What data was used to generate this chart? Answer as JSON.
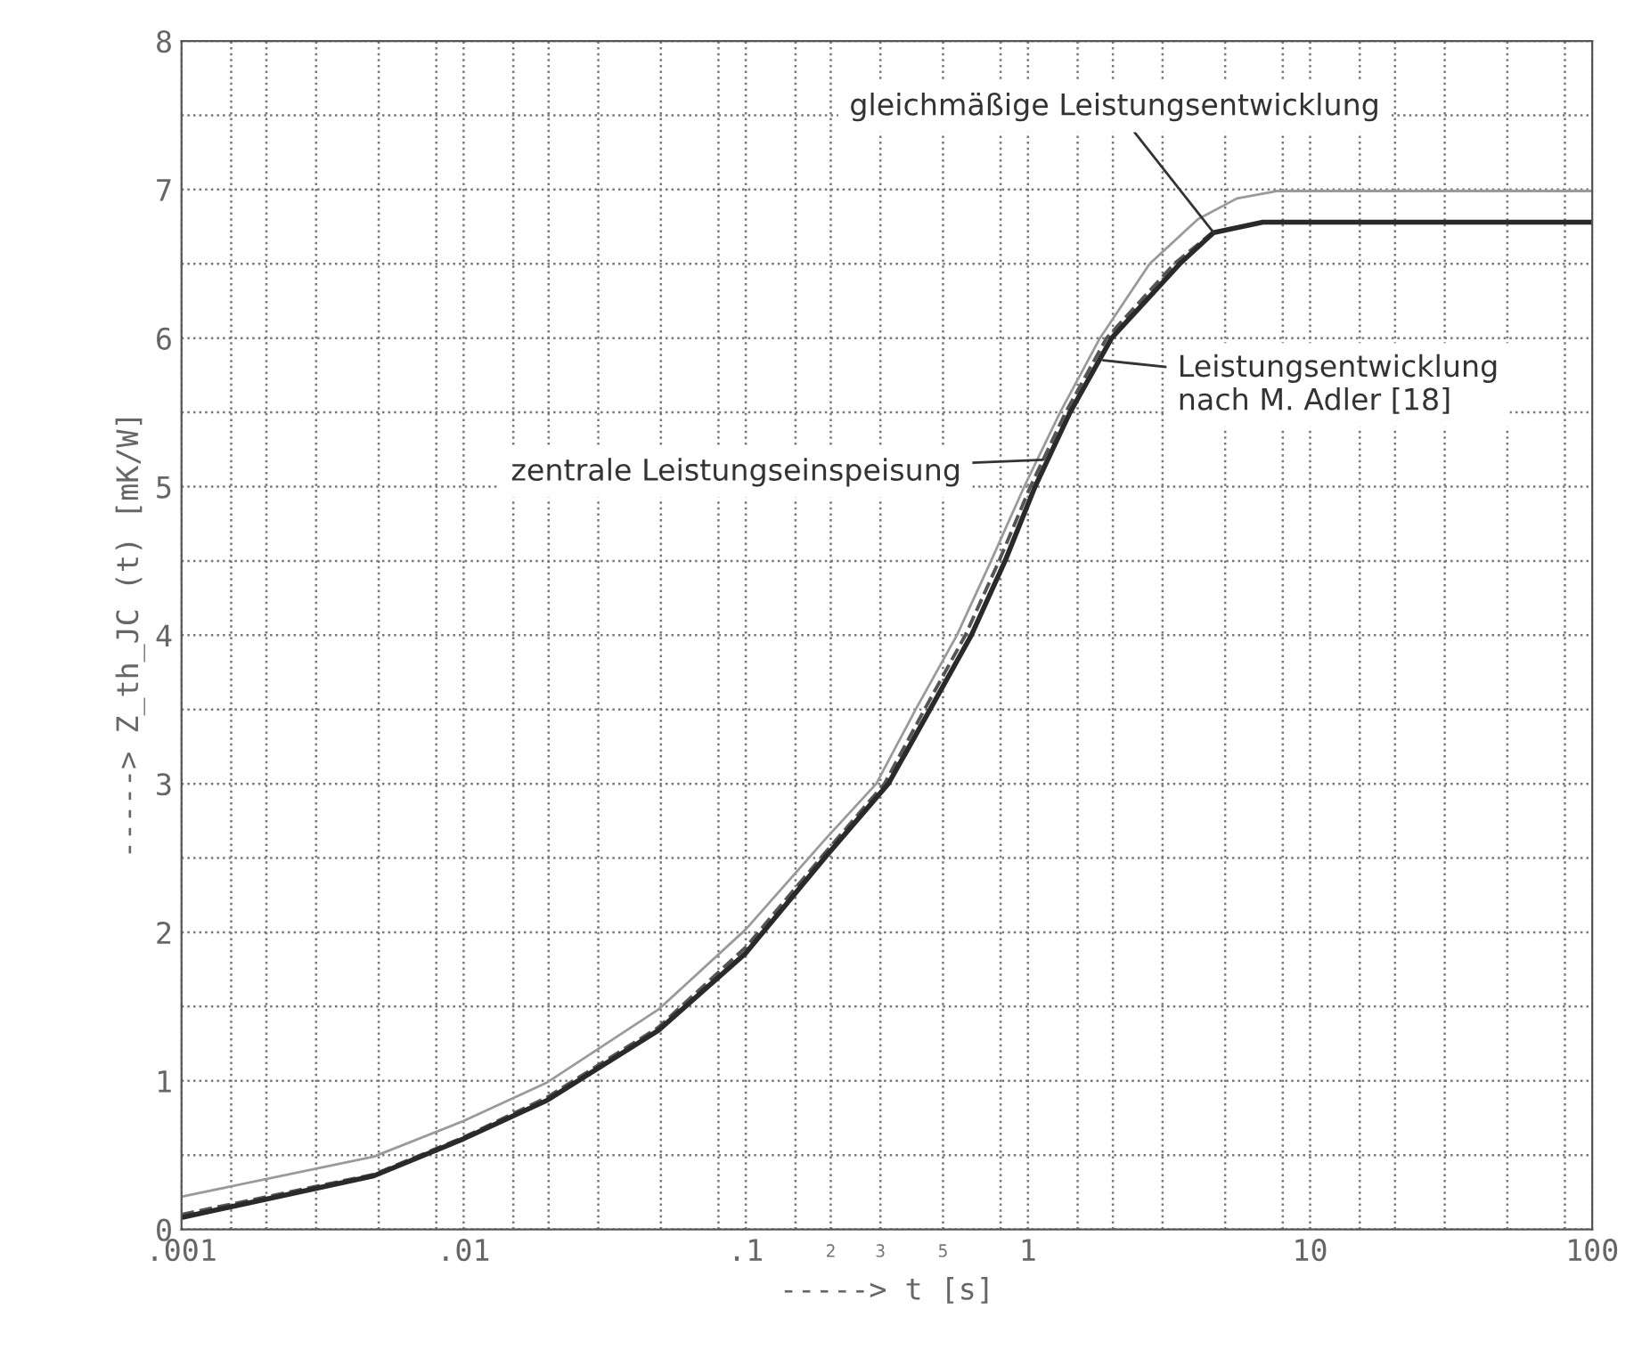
{
  "chart_data": {
    "type": "line",
    "xlabel": "-----> t [s]",
    "ylabel": "-----> Z_th_JC (t) [mK/W]",
    "log": "x",
    "xlim": [
      0.001,
      100
    ],
    "ylim": [
      0,
      8
    ],
    "xticks": [
      {
        "value": 0.001,
        "label": ".001"
      },
      {
        "value": 0.0015,
        "label": null
      },
      {
        "value": 0.002,
        "label": null
      },
      {
        "value": 0.003,
        "label": null
      },
      {
        "value": 0.005,
        "label": null
      },
      {
        "value": 0.008,
        "label": null
      },
      {
        "value": 0.01,
        "label": ".01"
      },
      {
        "value": 0.015,
        "label": null
      },
      {
        "value": 0.02,
        "label": null
      },
      {
        "value": 0.03,
        "label": null
      },
      {
        "value": 0.05,
        "label": null
      },
      {
        "value": 0.08,
        "label": null
      },
      {
        "value": 0.1,
        "label": ".1"
      },
      {
        "value": 0.15,
        "label": null
      },
      {
        "value": 0.2,
        "label": null
      },
      {
        "value": 0.3,
        "label": null
      },
      {
        "value": 0.5,
        "label": null
      },
      {
        "value": 0.8,
        "label": null
      },
      {
        "value": 1,
        "label": "1"
      },
      {
        "value": 1.5,
        "label": null
      },
      {
        "value": 2,
        "label": null
      },
      {
        "value": 3,
        "label": null
      },
      {
        "value": 5,
        "label": null
      },
      {
        "value": 8,
        "label": null
      },
      {
        "value": 10,
        "label": "10"
      },
      {
        "value": 15,
        "label": null
      },
      {
        "value": 20,
        "label": null
      },
      {
        "value": 30,
        "label": null
      },
      {
        "value": 50,
        "label": null
      },
      {
        "value": 80,
        "label": null
      },
      {
        "value": 100,
        "label": "100"
      }
    ],
    "yticks": [
      0,
      {
        "value": 0.5,
        "label": null
      },
      1,
      {
        "value": 1.5,
        "label": null
      },
      2,
      {
        "value": 2.5,
        "label": null
      },
      3,
      {
        "value": 3.5,
        "label": null
      },
      4,
      {
        "value": 4.5,
        "label": null
      },
      5,
      {
        "value": 5.5,
        "label": null
      },
      6,
      {
        "value": 6.5,
        "label": null
      },
      7,
      {
        "value": 7.5,
        "label": null
      },
      8
    ],
    "grid": true,
    "legend": false,
    "series": [
      {
        "color": "#9a9a9a",
        "line_style": "solid",
        "x": [
          0.001,
          0.0048,
          0.01,
          0.0198,
          0.049,
          0.1,
          0.192,
          0.29,
          0.4,
          0.56,
          0.74,
          0.97,
          1.3,
          1.8,
          2.7,
          4.0,
          5.5,
          7.6,
          100
        ],
        "values": [
          0.22,
          0.49,
          0.73,
          0.99,
          1.48,
          2.02,
          2.63,
          3.0,
          3.5,
          4.0,
          4.5,
          5.0,
          5.5,
          6.0,
          6.5,
          6.8,
          6.94,
          6.99,
          6.99
        ]
      },
      {
        "color": "#555555",
        "line_style": "dashed",
        "x": [
          0.001,
          0.0048,
          0.01,
          0.0198,
          0.049,
          0.1,
          0.19,
          0.31,
          0.43,
          0.6,
          0.79,
          1.02,
          1.36,
          1.9,
          3.3,
          4.5,
          6.8,
          100
        ],
        "values": [
          0.1,
          0.37,
          0.62,
          0.89,
          1.36,
          1.9,
          2.53,
          3.0,
          3.5,
          4.0,
          4.5,
          5.0,
          5.5,
          6.0,
          6.5,
          6.71,
          6.78,
          6.78
        ]
      },
      {
        "color": "#2a2a2a",
        "line_style": "solid",
        "x": [
          0.001,
          0.0048,
          0.01,
          0.0198,
          0.049,
          0.1,
          0.192,
          0.32,
          0.45,
          0.63,
          0.83,
          1.06,
          1.41,
          1.98,
          3.45,
          4.55,
          6.8,
          100
        ],
        "values": [
          0.08,
          0.36,
          0.61,
          0.87,
          1.34,
          1.86,
          2.51,
          3.0,
          3.5,
          4.0,
          4.5,
          5.0,
          5.5,
          6.0,
          6.5,
          6.71,
          6.78,
          6.78
        ]
      }
    ],
    "annotations": [
      {
        "text": "gleichmäßige Leistungsentwicklung",
        "x": 4.55,
        "y": 6.71
      },
      {
        "text": "Leistungsentwicklung\nnach M. Adler [18]",
        "x": 1.85,
        "y": 5.85
      },
      {
        "text": "zentrale Leistungseinspeisung",
        "x": 1.13,
        "y": 5.18
      },
      "2",
      "3",
      "5"
    ]
  }
}
